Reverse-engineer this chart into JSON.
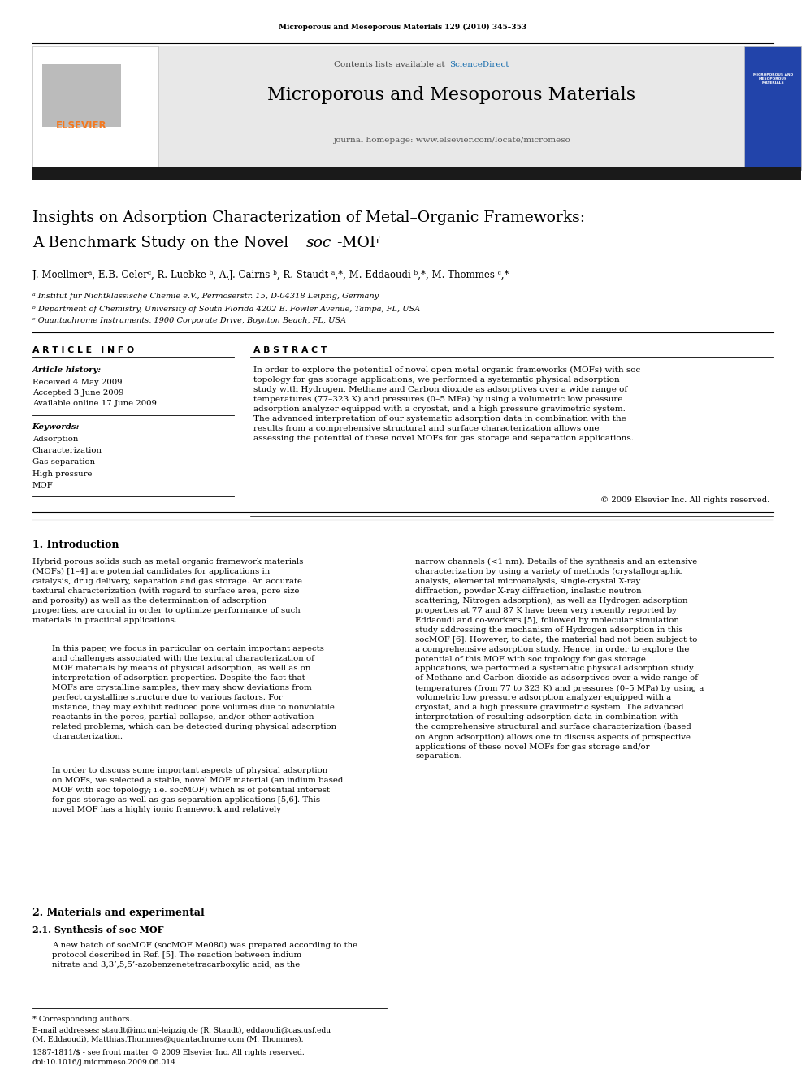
{
  "page_width": 9.92,
  "page_height": 13.23,
  "background_color": "#ffffff",
  "journal_ref": "Microporous and Mesoporous Materials 129 (2010) 345–353",
  "header_bg": "#e8e8e8",
  "sciencedirect_color": "#1a6faf",
  "journal_title": "Microporous and Mesoporous Materials",
  "journal_homepage": "journal homepage: www.elsevier.com/locate/micromeso",
  "elsevier_color": "#f47920",
  "paper_title_line1": "Insights on Adsorption Characterization of Metal–Organic Frameworks:",
  "paper_title_line2": "A Benchmark Study on the Novel ",
  "paper_title_soc": "soc",
  "paper_title_end": "-MOF",
  "authors": "J. Moellmerᵃ, E.B. Celerᶜ, R. Luebke ᵇ, A.J. Cairns ᵇ, R. Staudt ᵃ,*, M. Eddaoudi ᵇ,*, M. Thommes ᶜ,*",
  "affil_a": "ᵃ Institut für Nichtklassische Chemie e.V., Permoserstr. 15, D-04318 Leipzig, Germany",
  "affil_b": "ᵇ Department of Chemistry, University of South Florida 4202 E. Fowler Avenue, Tampa, FL, USA",
  "affil_c": "ᶜ Quantachrome Instruments, 1900 Corporate Drive, Boynton Beach, FL, USA",
  "article_info_title": "A R T I C L E   I N F O",
  "abstract_title": "A B S T R A C T",
  "article_history_label": "Article history:",
  "received": "Received 4 May 2009",
  "accepted": "Accepted 3 June 2009",
  "available_online": "Available online 17 June 2009",
  "keywords_label": "Keywords:",
  "keywords": [
    "Adsorption",
    "Characterization",
    "Gas separation",
    "High pressure",
    "MOF"
  ],
  "abstract_text": "In order to explore the potential of novel open metal organic frameworks (MOFs) with soc topology for gas storage applications, we performed a systematic physical adsorption study with Hydrogen, Methane and Carbon dioxide as adsorptives over a wide range of temperatures (77–323 K) and pressures (0–5 MPa) by using a volumetric low pressure adsorption analyzer equipped with a cryostat, and a high pressure gravimetric system. The advanced interpretation of our systematic adsorption data in combination with the results from a comprehensive structural and surface characterization allows one assessing the potential of these novel MOFs for gas storage and separation applications.",
  "copyright": "© 2009 Elsevier Inc. All rights reserved.",
  "section1_title": "1. Introduction",
  "intro_col1_p1": "Hybrid porous solids such as metal organic framework materials (MOFs) [1–4] are potential candidates for applications in catalysis, drug delivery, separation and gas storage. An accurate textural characterization (with regard to surface area, pore size and porosity) as well as the determination of adsorption properties, are crucial in order to optimize performance of such materials in practical applications.",
  "intro_col1_p2": "In this paper, we focus in particular on certain important aspects and challenges associated with the textural characterization of MOF materials by means of physical adsorption, as well as on interpretation of adsorption properties. Despite the fact that MOFs are crystalline samples, they may show deviations from perfect crystalline structure due to various factors. For instance, they may exhibit reduced pore volumes due to nonvolatile reactants in the pores, partial collapse, and/or other activation related problems, which can be detected during physical adsorption characterization.",
  "intro_col1_p3": "In order to discuss some important aspects of physical adsorption on MOFs, we selected a stable, novel MOF material (an indium based MOF with soc topology; i.e. socMOF) which is of potential interest for gas storage as well as gas separation applications [5,6]. This novel MOF has a highly ionic framework and relatively",
  "intro_col2": "narrow channels (<1 nm). Details of the synthesis and an extensive characterization by using a variety of methods (crystallographic analysis, elemental microanalysis, single-crystal X-ray diffraction, powder X-ray diffraction, inelastic neutron scattering, Nitrogen adsorption), as well as Hydrogen adsorption properties at 77 and 87 K have been very recently reported by Eddaoudi and co-workers [5], followed by molecular simulation study addressing the mechanism of Hydrogen adsorption in this socMOF [6]. However, to date, the material had not been subject to a comprehensive adsorption study. Hence, in order to explore the potential of this MOF with soc topology for gas storage applications, we performed a systematic physical adsorption study of Methane and Carbon dioxide as adsorptives over a wide range of temperatures (from 77 to 323 K) and pressures (0–5 MPa) by using a volumetric low pressure adsorption analyzer equipped with a cryostat, and a high pressure gravimetric system. The advanced interpretation of resulting adsorption data in combination with the comprehensive structural and surface characterization (based on Argon adsorption) allows one to discuss aspects of prospective applications of these novel MOFs for gas storage and/or separation.",
  "section2_title": "2. Materials and experimental",
  "section21_title": "2.1. Synthesis of soc MOF",
  "section21_text": "A new batch of socMOF (socMOF Me080) was prepared according to the protocol described in Ref. [5]. The reaction between indium nitrate and 3,3’,5,5’-azobenzenetetracarboxylic acid, as the",
  "footnote_star": "* Corresponding authors.",
  "footnote_email1": "E-mail addresses: staudt@inc.uni-leipzig.de (R. Staudt), eddaoudi@cas.usf.edu",
  "footnote_email2": "(M. Eddaoudi), Matthias.Thommes@quantachrome.com (M. Thommes).",
  "footnote_issn": "1387-1811/$ - see front matter © 2009 Elsevier Inc. All rights reserved.",
  "footnote_doi": "doi:10.1016/j.micromeso.2009.06.014",
  "dark_bar_color": "#1a1a1a"
}
